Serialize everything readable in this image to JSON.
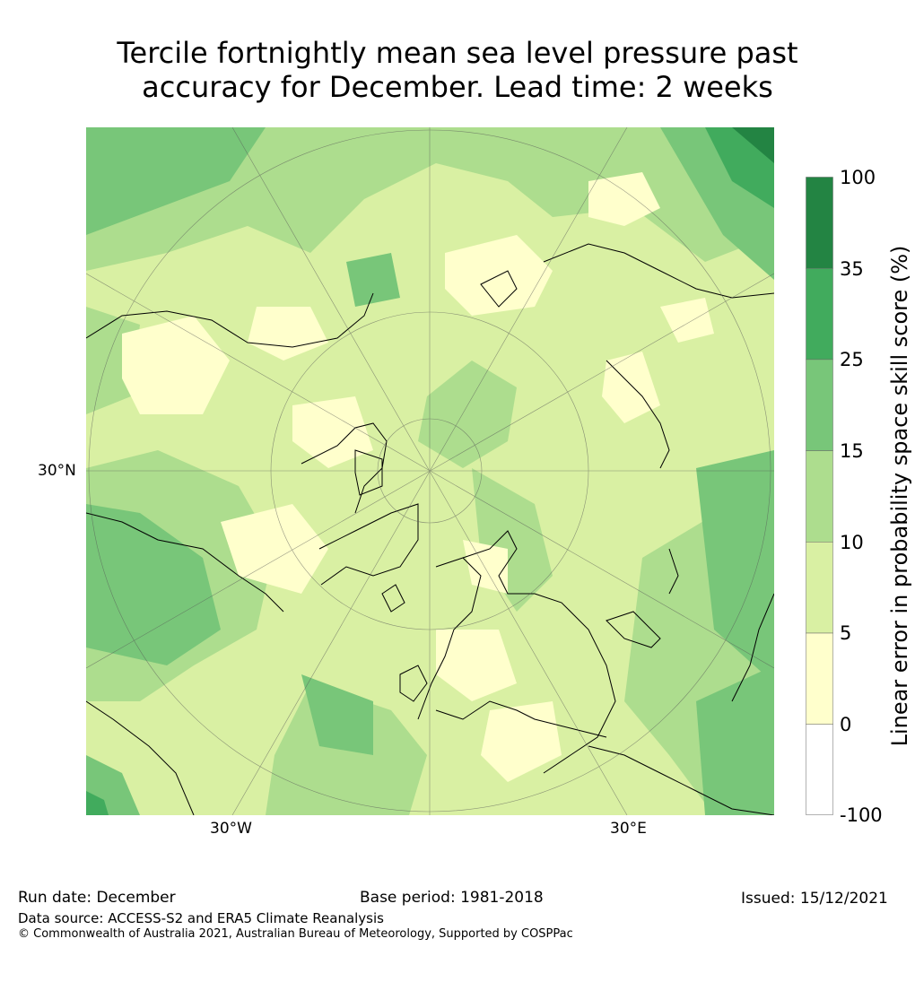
{
  "title_line1": "Tercile fortnightly mean sea level pressure past",
  "title_line2": "accuracy for December. Lead time: 2 weeks",
  "graticule": {
    "lat": "30°N",
    "lon_west": "30°W",
    "lon_east": "30°E"
  },
  "colorbar": {
    "label": "Linear error in probability space skill score (%)",
    "ticks": [
      "100",
      "35",
      "25",
      "15",
      "10",
      "5",
      "0",
      "-100"
    ],
    "bins": [
      {
        "range": "-100 to 0",
        "color": "#ffffff"
      },
      {
        "range": "0 to 5",
        "color": "#ffffcc"
      },
      {
        "range": "5 to 10",
        "color": "#d9f0a3"
      },
      {
        "range": "10 to 15",
        "color": "#addd8e"
      },
      {
        "range": "15 to 25",
        "color": "#78c679"
      },
      {
        "range": "25 to 35",
        "color": "#41ab5d"
      },
      {
        "range": "35 to 100",
        "color": "#238443"
      }
    ]
  },
  "footer": {
    "run_date": "Run date: December",
    "base_period": "Base period: 1981-2018",
    "issued": "Issued: 15/12/2021",
    "data_source": "Data source: ACCESS-S2 and ERA5 Climate Reanalysis",
    "copyright": "© Commonwealth of Australia 2021, Australian Bureau of Meteorology, Supported by COSPPac"
  }
}
